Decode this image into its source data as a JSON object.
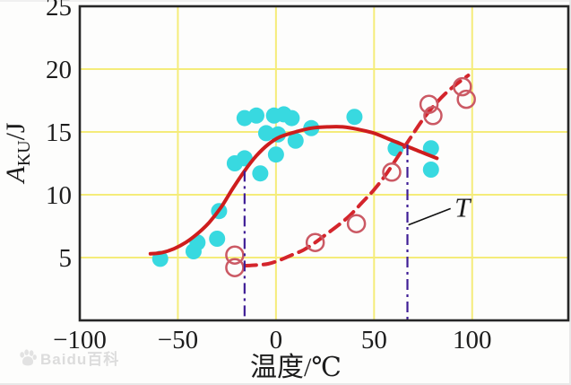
{
  "figure": {
    "background": "#fdfdfc",
    "frame_color": "#262626",
    "grid_color": "#f5ec7a",
    "text_color": "#1c1c1c"
  },
  "watermark": {
    "brand": "Baidu百科"
  },
  "chart_data": {
    "type": "scatter",
    "title": "",
    "xlabel": "温度/℃",
    "ylabel": "A_KU/J",
    "ylabel_parts": {
      "var": "A",
      "sub": "KU",
      "unit": "/J"
    },
    "xlim": [
      -100,
      149
    ],
    "ylim": [
      0,
      25
    ],
    "grid": {
      "x": [
        -50,
        0,
        50,
        100
      ],
      "y": [
        5,
        10,
        15,
        20
      ]
    },
    "x_ticks": [
      {
        "v": -100,
        "label": "−100"
      },
      {
        "v": -50,
        "label": "−50"
      },
      {
        "v": 0,
        "label": "0"
      },
      {
        "v": 50,
        "label": "50"
      },
      {
        "v": 100,
        "label": "100"
      }
    ],
    "y_ticks": [
      {
        "v": 25,
        "label": "25"
      },
      {
        "v": 20,
        "label": "20"
      },
      {
        "v": 15,
        "label": "15"
      },
      {
        "v": 10,
        "label": "10"
      },
      {
        "v": 5,
        "label": "5"
      }
    ],
    "series": [
      {
        "name": "impact-energy-points-cyan",
        "kind": "scatter",
        "marker": "filled-circle",
        "color": "#38d9e0",
        "radius": 9,
        "points": [
          [
            -59,
            4.9
          ],
          [
            -42,
            5.5
          ],
          [
            -40,
            6.2
          ],
          [
            -30,
            6.5
          ],
          [
            -29,
            8.7
          ],
          [
            -21,
            12.5
          ],
          [
            -16,
            12.9
          ],
          [
            -16,
            16.1
          ],
          [
            -10,
            16.3
          ],
          [
            -8,
            11.7
          ],
          [
            -5,
            14.9
          ],
          [
            -1,
            16.3
          ],
          [
            0,
            13.2
          ],
          [
            1,
            14.8
          ],
          [
            4,
            16.4
          ],
          [
            8,
            16.1
          ],
          [
            10,
            14.3
          ],
          [
            18,
            15.3
          ],
          [
            40,
            16.2
          ],
          [
            61,
            13.7
          ],
          [
            79,
            13.7
          ],
          [
            79,
            12.0
          ]
        ]
      },
      {
        "name": "impact-energy-points-open",
        "kind": "scatter",
        "marker": "open-circle",
        "color": "#cb5964",
        "radius": 9.5,
        "stroke_width": 2.5,
        "points": [
          [
            -21,
            5.2
          ],
          [
            -21,
            4.2
          ],
          [
            20,
            6.2
          ],
          [
            41,
            7.7
          ],
          [
            59,
            11.8
          ],
          [
            78,
            17.2
          ],
          [
            80,
            16.3
          ],
          [
            95,
            18.6
          ],
          [
            97,
            17.6
          ]
        ]
      },
      {
        "name": "upper-trend-curve",
        "kind": "line",
        "style": "solid",
        "color": "#ce1d1d",
        "width": 4,
        "points": [
          [
            -64,
            5.3
          ],
          [
            -58,
            5.4
          ],
          [
            -52,
            5.7
          ],
          [
            -46,
            6.2
          ],
          [
            -40,
            6.9
          ],
          [
            -34,
            7.8
          ],
          [
            -28,
            9.0
          ],
          [
            -22,
            10.5
          ],
          [
            -16,
            11.9
          ],
          [
            -10,
            13.1
          ],
          [
            -4,
            14.0
          ],
          [
            2,
            14.6
          ],
          [
            10,
            15.0
          ],
          [
            18,
            15.3
          ],
          [
            26,
            15.4
          ],
          [
            34,
            15.4
          ],
          [
            42,
            15.2
          ],
          [
            50,
            14.9
          ],
          [
            58,
            14.4
          ],
          [
            66,
            13.9
          ],
          [
            74,
            13.4
          ],
          [
            82,
            12.9
          ]
        ]
      },
      {
        "name": "lower-trend-curve",
        "kind": "line",
        "style": "dashed",
        "color": "#d4252c",
        "width": 4,
        "dash": "13 8",
        "points": [
          [
            -16,
            4.35
          ],
          [
            -10,
            4.4
          ],
          [
            -4,
            4.5
          ],
          [
            2,
            4.8
          ],
          [
            8,
            5.2
          ],
          [
            14,
            5.6
          ],
          [
            20,
            6.2
          ],
          [
            26,
            6.9
          ],
          [
            32,
            7.6
          ],
          [
            38,
            8.4
          ],
          [
            44,
            9.4
          ],
          [
            50,
            10.4
          ],
          [
            56,
            11.6
          ],
          [
            62,
            13.0
          ],
          [
            68,
            14.4
          ],
          [
            74,
            15.8
          ],
          [
            80,
            17.0
          ],
          [
            86,
            18.0
          ],
          [
            92,
            18.8
          ],
          [
            98,
            19.5
          ]
        ]
      }
    ],
    "reference_lines": [
      {
        "name": "transition-line-left",
        "x": -16,
        "y_from": 0,
        "y_to": 11.9,
        "color": "#3f1e96",
        "dash": "12 5 3 5",
        "width": 2.2
      },
      {
        "name": "transition-line-right",
        "x": 67,
        "y_from": 0,
        "y_to": 14.0,
        "color": "#3f1e96",
        "dash": "12 5 3 5",
        "width": 2.2
      }
    ],
    "annotations": [
      {
        "name": "t-annotation",
        "text": "T",
        "label_pos": [
          95,
          9.1
        ],
        "line_from": [
          67.5,
          7.6
        ],
        "line_to": [
          89,
          8.9
        ],
        "line_color": "#111111"
      }
    ]
  }
}
